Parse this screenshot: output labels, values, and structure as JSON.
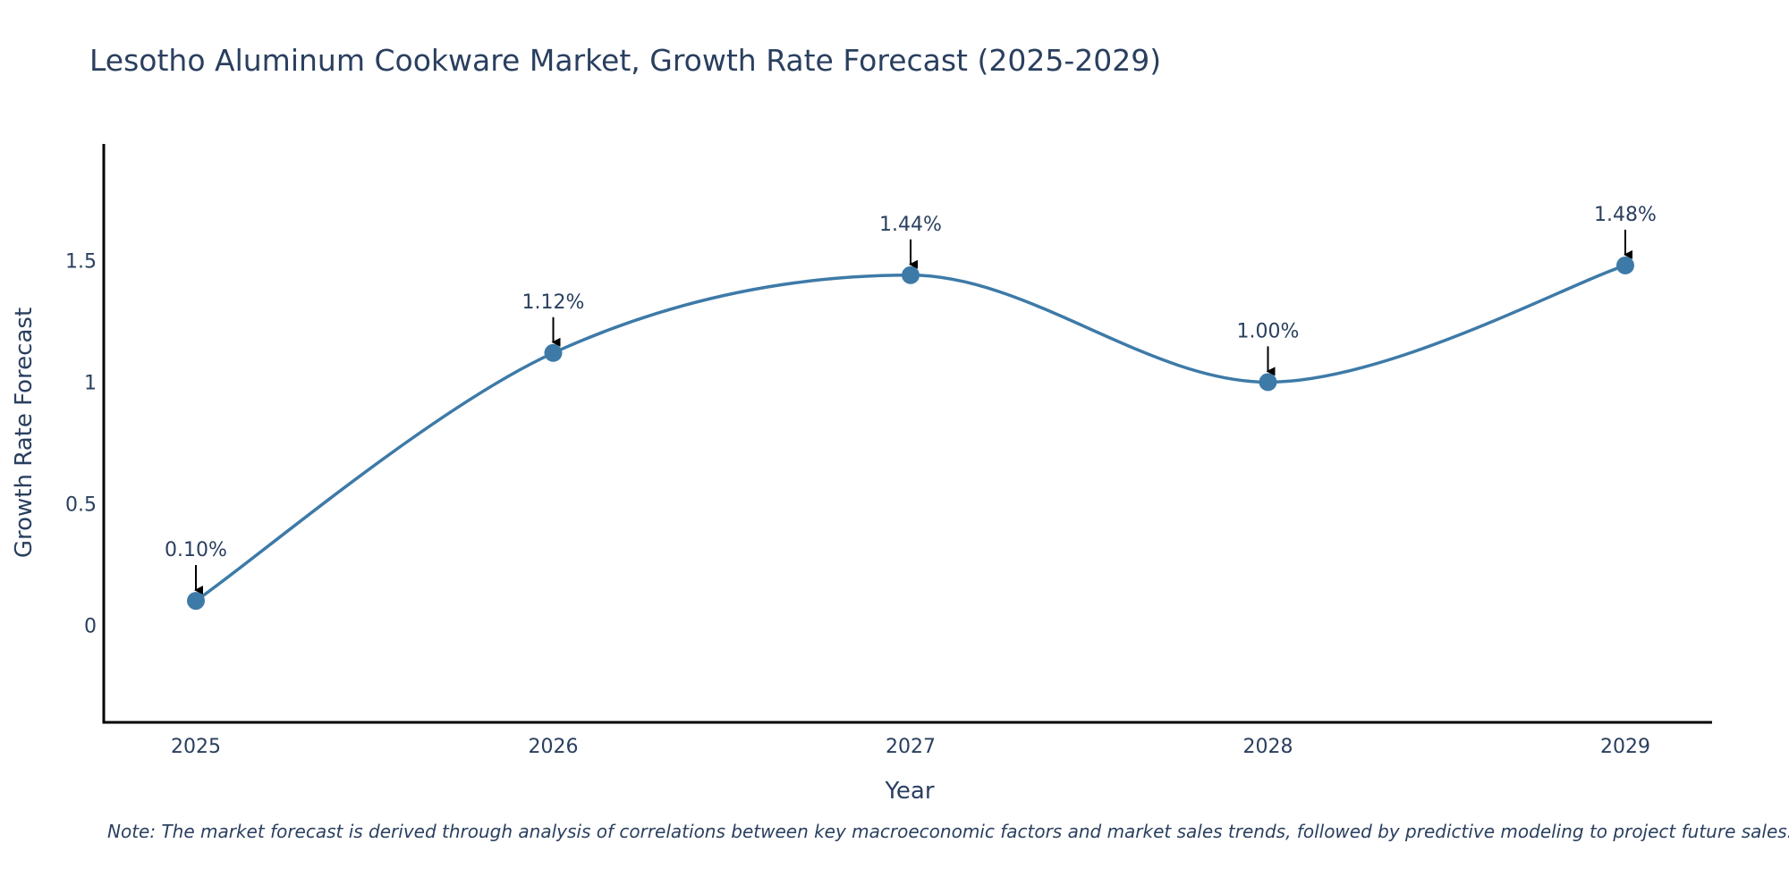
{
  "chart_data": {
    "type": "line",
    "title": "Lesotho Aluminum Cookware Market, Growth Rate Forecast (2025-2029)",
    "xlabel": "Year",
    "ylabel": "Growth Rate Forecast",
    "categories": [
      "2025",
      "2026",
      "2027",
      "2028",
      "2029"
    ],
    "series": [
      {
        "name": "Growth Rate Forecast",
        "values": [
          0.1,
          1.12,
          1.44,
          1.0,
          1.48
        ],
        "labels": [
          "0.10%",
          "1.12%",
          "1.44%",
          "1.00%",
          "1.48%"
        ]
      }
    ],
    "ylim": [
      -0.4,
      1.98
    ],
    "yticks": [
      0,
      0.5,
      1,
      1.5
    ],
    "ytick_labels": [
      "0",
      "0.5",
      "1",
      "1.5"
    ],
    "grid": false,
    "line_color": "#3d7aa8",
    "marker_color": "#3d7aa8",
    "axis_color": "#000000",
    "arrow_color": "#000000"
  },
  "note": "Note: The market forecast is derived through analysis of correlations between key macroeconomic factors and market sales trends, followed by predictive modeling to project future sales."
}
